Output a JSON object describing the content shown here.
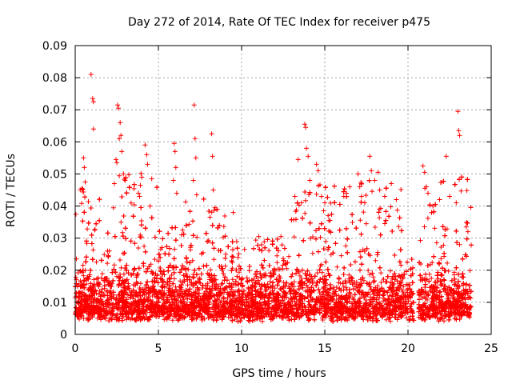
{
  "chart_data": {
    "type": "scatter",
    "title": "Day 272 of 2014, Rate Of TEC Index for receiver p475",
    "xlabel": "GPS time / hours",
    "ylabel": "ROTI / TECUs",
    "xlim": [
      0,
      25
    ],
    "ylim": [
      0,
      0.09
    ],
    "x_ticks": [
      0,
      5,
      10,
      15,
      20,
      25
    ],
    "y_ticks": [
      0,
      0.01,
      0.02,
      0.03,
      0.04,
      0.05,
      0.06,
      0.07,
      0.08,
      0.09
    ],
    "x_tick_labels": [
      "0",
      "5",
      "10",
      "15",
      "20",
      "25"
    ],
    "y_tick_labels": [
      "0",
      "0.01",
      "0.02",
      "0.03",
      "0.04",
      "0.05",
      "0.06",
      "0.07",
      "0.08",
      "0.09"
    ],
    "grid": true,
    "marker": "+",
    "marker_color": "#ff0000",
    "data_gaps_hours": [
      [
        20.35,
        20.65
      ]
    ],
    "x_data_range": [
      0.0,
      23.8
    ],
    "series": [
      {
        "name": "ROTI",
        "x": [
          0.95,
          1.05,
          1.1,
          1.1,
          0.5,
          0.55,
          0.6,
          0.4,
          2.55,
          2.6,
          2.7,
          2.75,
          2.65,
          2.8,
          2.5,
          2.45,
          2.9,
          3.0,
          3.1,
          2.35,
          4.2,
          4.3,
          4.35,
          4.0,
          3.8,
          4.5,
          4.6,
          5.95,
          6.0,
          6.05,
          5.9,
          6.1,
          7.15,
          7.2,
          7.25,
          7.1,
          7.3,
          8.2,
          8.25,
          8.3,
          8.4,
          9.5,
          13.2,
          13.4,
          13.8,
          13.85,
          13.9,
          14.0,
          14.1,
          13.6,
          14.5,
          14.6,
          14.8,
          15.0,
          15.2,
          16.3,
          16.5,
          17.0,
          17.1,
          17.2,
          17.4,
          17.7,
          17.8,
          18.0,
          18.2,
          18.3,
          18.6,
          19.0,
          19.3,
          20.9,
          21.0,
          21.1,
          21.2,
          21.5,
          21.9,
          22.3,
          22.5,
          22.9,
          23.0,
          23.05,
          23.1,
          23.5,
          23.6
        ],
        "y": [
          0.081,
          0.0735,
          0.064,
          0.0725,
          0.055,
          0.052,
          0.0475,
          0.0455,
          0.0715,
          0.0705,
          0.066,
          0.062,
          0.061,
          0.057,
          0.0535,
          0.0545,
          0.05,
          0.048,
          0.044,
          0.047,
          0.059,
          0.056,
          0.053,
          0.049,
          0.044,
          0.04,
          0.0485,
          0.0595,
          0.057,
          0.052,
          0.048,
          0.044,
          0.0715,
          0.061,
          0.055,
          0.048,
          0.0435,
          0.0625,
          0.0555,
          0.045,
          0.0395,
          0.038,
          0.043,
          0.0545,
          0.0655,
          0.0645,
          0.058,
          0.0555,
          0.048,
          0.041,
          0.053,
          0.051,
          0.043,
          0.041,
          0.037,
          0.044,
          0.046,
          0.05,
          0.046,
          0.043,
          0.041,
          0.0555,
          0.051,
          0.048,
          0.0505,
          0.045,
          0.043,
          0.047,
          0.042,
          0.0525,
          0.0505,
          0.046,
          0.044,
          0.04,
          0.042,
          0.0555,
          0.043,
          0.041,
          0.0695,
          0.0635,
          0.062,
          0.0335,
          0.032
        ]
      }
    ],
    "density_profile_note": "dense band of points 0.003-0.02 across 0-20.35 h and 20.65-23.8 h; sparse points up to ~0.035"
  }
}
